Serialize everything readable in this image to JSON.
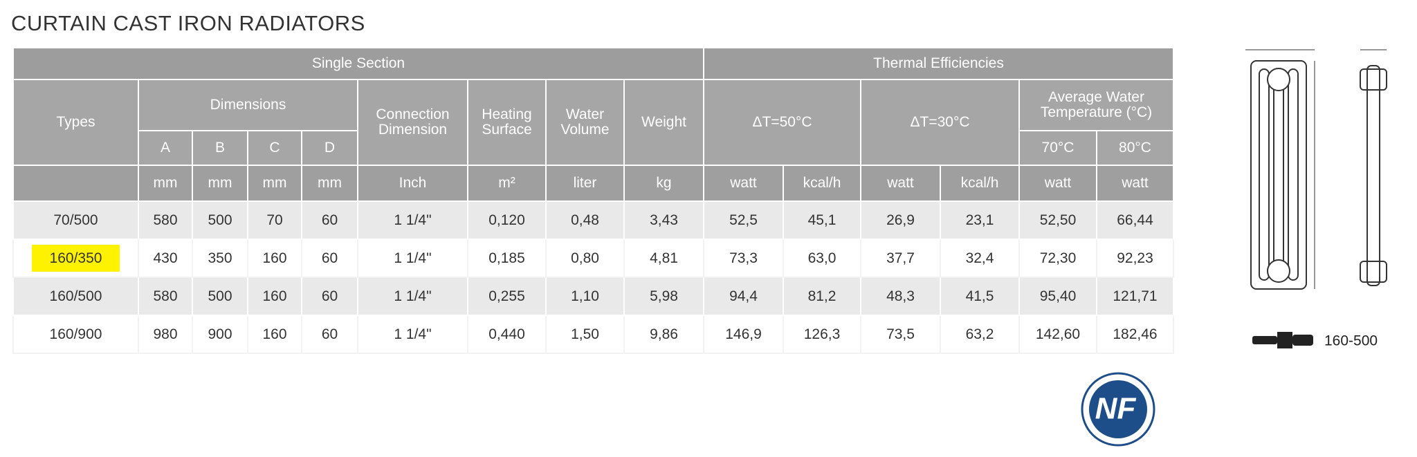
{
  "title": "CURTAIN CAST IRON RADIATORS",
  "table": {
    "group_headers": [
      "Single Section",
      "Thermal Efficiencies"
    ],
    "headers": {
      "types": "Types",
      "dimensions": "Dimensions",
      "dims": [
        "A",
        "B",
        "C",
        "D"
      ],
      "connection": "Connection Dimension",
      "heating": "Heating Surface",
      "water": "Water Volume",
      "weight": "Weight",
      "dt50": "ΔT=50°C",
      "dt30": "ΔT=30°C",
      "avg": "Average Water Temperature (°C)",
      "temps": [
        "70°C",
        "80°C"
      ]
    },
    "units": [
      "mm",
      "mm",
      "mm",
      "mm",
      "Inch",
      "m²",
      "liter",
      "kg",
      "watt",
      "kcal/h",
      "watt",
      "kcal/h",
      "watt",
      "watt"
    ],
    "rows": [
      [
        "70/500",
        "580",
        "500",
        "70",
        "60",
        "1 1/4\"",
        "0,120",
        "0,48",
        "3,43",
        "52,5",
        "45,1",
        "26,9",
        "23,1",
        "52,50",
        "66,44"
      ],
      [
        "160/350",
        "430",
        "350",
        "160",
        "60",
        "1 1/4\"",
        "0,185",
        "0,80",
        "4,81",
        "73,3",
        "63,0",
        "37,7",
        "32,4",
        "72,30",
        "92,23"
      ],
      [
        "160/500",
        "580",
        "500",
        "160",
        "60",
        "1 1/4\"",
        "0,255",
        "1,10",
        "5,98",
        "94,4",
        "81,2",
        "48,3",
        "41,5",
        "95,40",
        "121,71"
      ],
      [
        "160/900",
        "980",
        "900",
        "160",
        "60",
        "1 1/4\"",
        "0,440",
        "1,50",
        "9,86",
        "146,9",
        "126,3",
        "73,5",
        "63,2",
        "142,60",
        "182,46"
      ]
    ]
  },
  "connector_label": "160-500",
  "logo": "NF"
}
